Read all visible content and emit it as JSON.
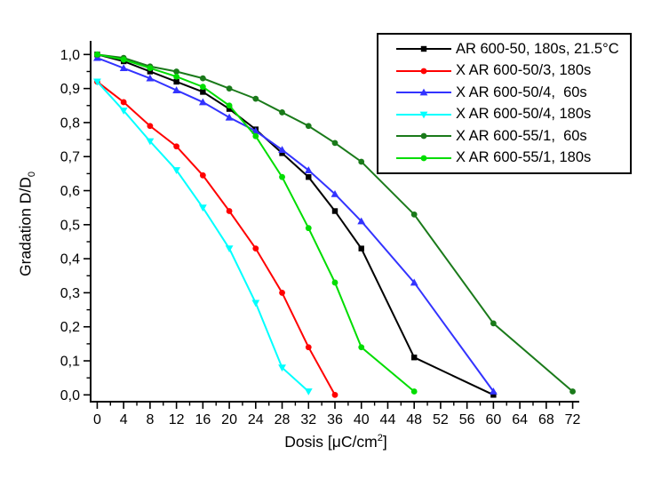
{
  "labels": {
    "y_axis": {
      "main": "Gradation D/D",
      "sub": "0"
    },
    "x_axis": {
      "main": "Dosis [μC/cm",
      "sup": "2",
      "close": "]"
    }
  },
  "chart_data": {
    "type": "line",
    "title": "",
    "xlabel": "Dosis [μC/cm²]",
    "ylabel": "Gradation D/D₀",
    "xlim": [
      -1,
      73
    ],
    "ylim": [
      -0.02,
      1.04
    ],
    "grid": false,
    "legend_position": "top-right",
    "x_ticks": {
      "major": [
        0,
        4,
        8,
        12,
        16,
        20,
        24,
        28,
        32,
        36,
        40,
        44,
        48,
        52,
        56,
        60,
        64,
        68,
        72
      ],
      "labels": [
        "0",
        "4",
        "8",
        "12",
        "16",
        "20",
        "24",
        "28",
        "32",
        "36",
        "40",
        "44",
        "48",
        "52",
        "56",
        "60",
        "64",
        "68",
        "72"
      ],
      "minor_step": 2
    },
    "y_ticks": {
      "major": [
        0.0,
        0.1,
        0.2,
        0.3,
        0.4,
        0.5,
        0.6,
        0.7,
        0.8,
        0.9,
        1.0
      ],
      "labels": [
        "0,0",
        "0,1",
        "0,2",
        "0,3",
        "0,4",
        "0,5",
        "0,6",
        "0,7",
        "0,8",
        "0,9",
        "1,0"
      ],
      "minor_step": 0.05
    },
    "series": [
      {
        "name": "AR 600-50, 180s, 21.5°C",
        "color": "#000000",
        "marker": "square",
        "x": [
          0,
          4,
          8,
          12,
          16,
          20,
          24,
          28,
          32,
          36,
          40,
          48,
          60
        ],
        "y": [
          1.0,
          0.98,
          0.95,
          0.92,
          0.89,
          0.84,
          0.78,
          0.71,
          0.64,
          0.54,
          0.43,
          0.11,
          0.0
        ]
      },
      {
        "name": "X AR 600-50/3, 180s",
        "color": "#ff0000",
        "marker": "circle",
        "x": [
          0,
          4,
          8,
          12,
          16,
          20,
          24,
          28,
          32,
          36
        ],
        "y": [
          0.92,
          0.86,
          0.79,
          0.73,
          0.645,
          0.54,
          0.43,
          0.3,
          0.14,
          0.0
        ]
      },
      {
        "name": "X AR 600-50/4,  60s",
        "color": "#3333ff",
        "marker": "triangle-up",
        "x": [
          0,
          4,
          8,
          12,
          16,
          20,
          24,
          28,
          32,
          36,
          40,
          48,
          60
        ],
        "y": [
          0.99,
          0.96,
          0.93,
          0.895,
          0.86,
          0.815,
          0.775,
          0.72,
          0.66,
          0.59,
          0.51,
          0.33,
          0.01
        ]
      },
      {
        "name": "X AR 600-50/4, 180s",
        "color": "#00ffff",
        "marker": "triangle-down",
        "x": [
          0,
          4,
          8,
          12,
          16,
          20,
          24,
          28,
          32
        ],
        "y": [
          0.92,
          0.835,
          0.745,
          0.66,
          0.55,
          0.43,
          0.27,
          0.08,
          0.01
        ]
      },
      {
        "name": "X AR 600-55/1,  60s",
        "color": "#1a7a1a",
        "marker": "circle",
        "x": [
          0,
          4,
          8,
          12,
          16,
          20,
          24,
          28,
          32,
          36,
          40,
          48,
          60,
          72
        ],
        "y": [
          1.0,
          0.99,
          0.965,
          0.95,
          0.93,
          0.9,
          0.87,
          0.83,
          0.79,
          0.74,
          0.685,
          0.53,
          0.21,
          0.01
        ]
      },
      {
        "name": "X AR 600-55/1, 180s",
        "color": "#00dd00",
        "marker": "circle",
        "x": [
          0,
          4,
          8,
          12,
          16,
          20,
          24,
          28,
          32,
          36,
          40,
          48
        ],
        "y": [
          1.0,
          0.985,
          0.96,
          0.935,
          0.905,
          0.85,
          0.76,
          0.64,
          0.49,
          0.33,
          0.14,
          0.01
        ]
      }
    ]
  }
}
